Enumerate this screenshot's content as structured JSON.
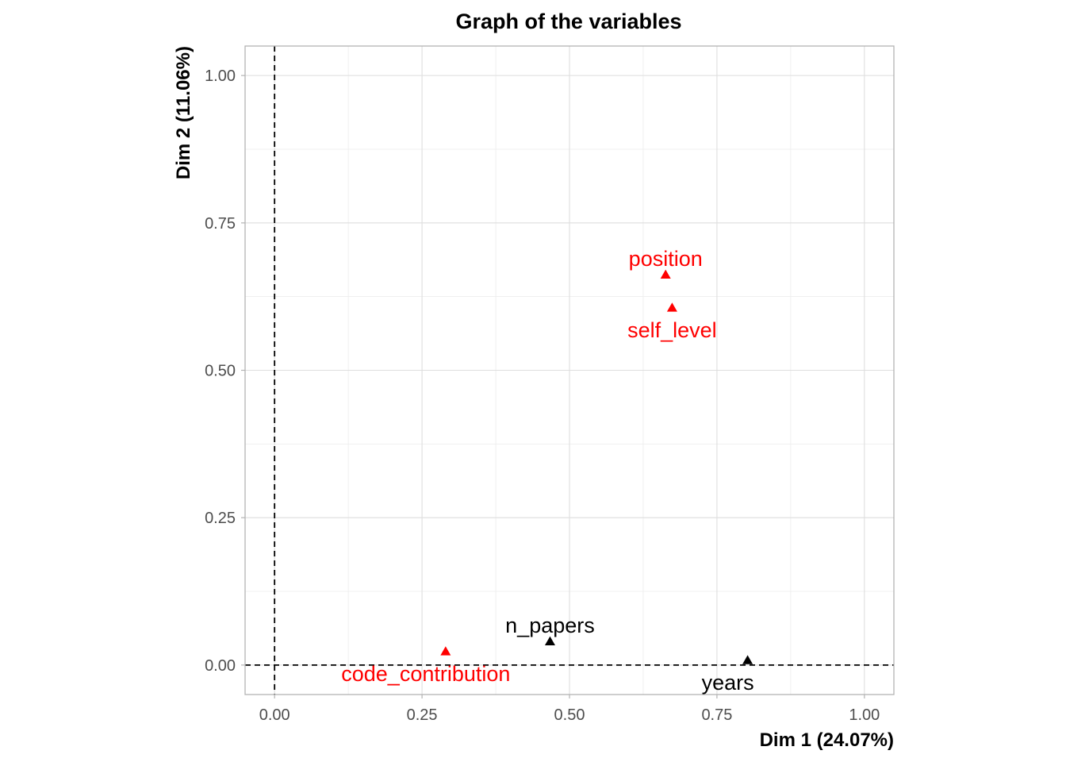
{
  "chart_data": {
    "type": "scatter",
    "title": "Graph of the variables",
    "xlabel": "Dim 1 (24.07%)",
    "ylabel": "Dim 2 (11.06%)",
    "xlim": [
      -0.05,
      1.05
    ],
    "ylim": [
      -0.05,
      1.05
    ],
    "xticks": [
      0.0,
      0.25,
      0.5,
      0.75,
      1.0
    ],
    "yticks": [
      0.0,
      0.25,
      0.5,
      0.75,
      1.0
    ],
    "xtick_labels": [
      "0.00",
      "0.25",
      "0.50",
      "0.75",
      "1.00"
    ],
    "ytick_labels": [
      "0.00",
      "0.25",
      "0.50",
      "0.75",
      "1.00"
    ],
    "grid": true,
    "reference_lines": {
      "x": 0,
      "y": 0
    },
    "marker": "triangle",
    "points": [
      {
        "name": "position",
        "x": 0.663,
        "y": 0.662,
        "color": "#ff0000",
        "label_pos": "above"
      },
      {
        "name": "self_level",
        "x": 0.674,
        "y": 0.606,
        "color": "#ff0000",
        "label_pos": "below"
      },
      {
        "name": "n_papers",
        "x": 0.467,
        "y": 0.04,
        "color": "#000000",
        "label_pos": "above"
      },
      {
        "name": "code_contribution",
        "x": 0.29,
        "y": 0.023,
        "color": "#ff0000",
        "label_pos": "below-left"
      },
      {
        "name": "years",
        "x": 0.802,
        "y": 0.008,
        "color": "#000000",
        "label_pos": "below-left"
      }
    ]
  }
}
